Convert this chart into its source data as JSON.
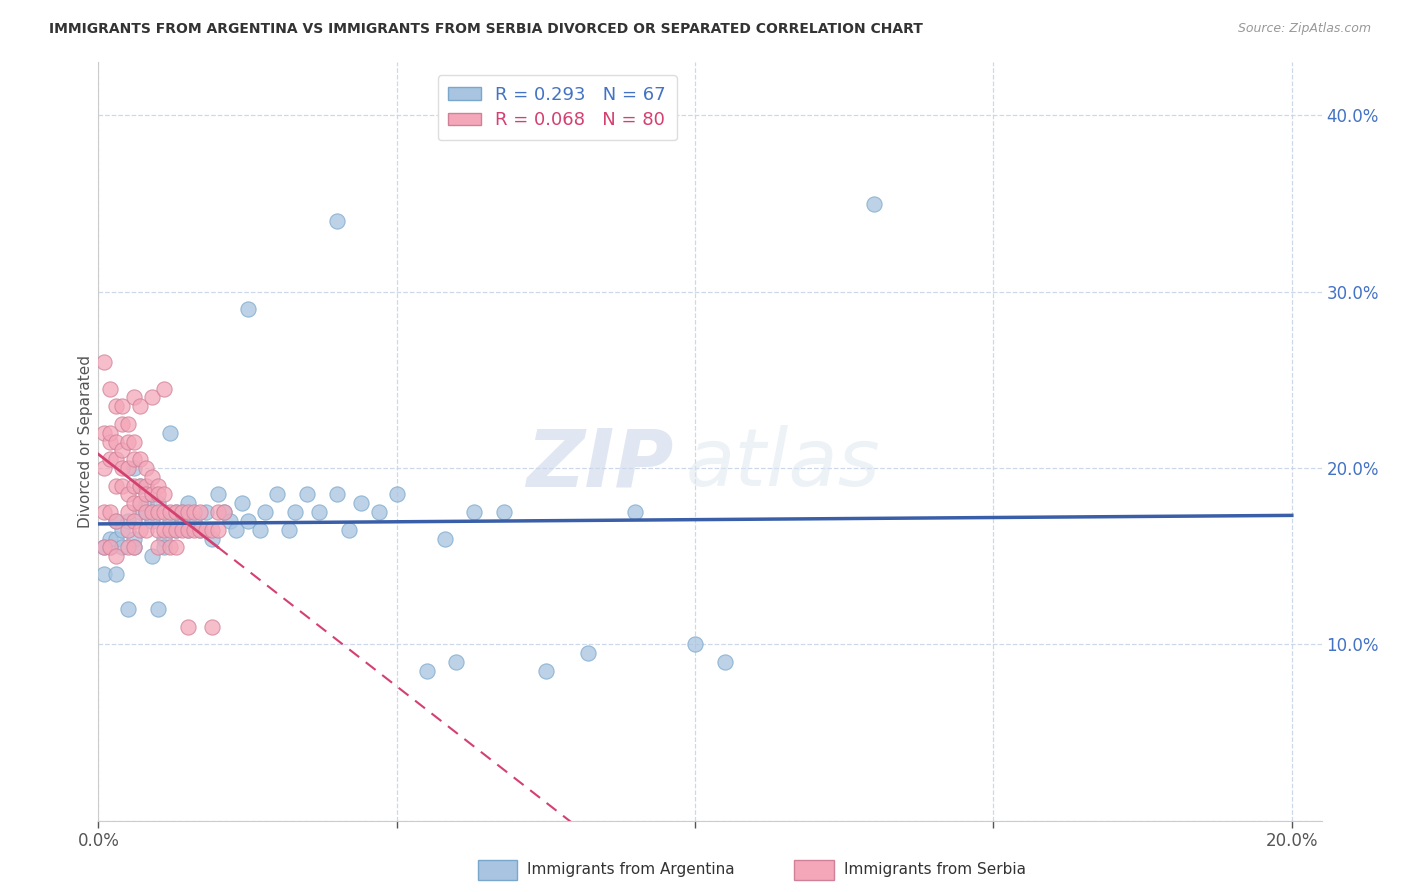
{
  "title": "IMMIGRANTS FROM ARGENTINA VS IMMIGRANTS FROM SERBIA DIVORCED OR SEPARATED CORRELATION CHART",
  "source": "Source: ZipAtlas.com",
  "ylabel": "Divorced or Separated",
  "xlim": [
    0.0,
    0.205
  ],
  "ylim": [
    0.0,
    0.43
  ],
  "xticks": [
    0.0,
    0.05,
    0.1,
    0.15,
    0.2
  ],
  "yticks": [
    0.1,
    0.2,
    0.3,
    0.4
  ],
  "argentina_color": "#a8c4e0",
  "argentina_edge": "#7aa8cc",
  "serbia_color": "#f4a7b9",
  "serbia_edge": "#d08098",
  "argentina_line_color": "#3a5fa8",
  "serbia_line_color": "#d44070",
  "R_argentina": 0.293,
  "N_argentina": 67,
  "R_serbia": 0.068,
  "N_serbia": 80,
  "watermark_zip": "ZIP",
  "watermark_atlas": "atlas",
  "argentina_x": [
    0.001,
    0.001,
    0.002,
    0.002,
    0.003,
    0.003,
    0.003,
    0.004,
    0.004,
    0.005,
    0.005,
    0.006,
    0.006,
    0.006,
    0.007,
    0.007,
    0.008,
    0.008,
    0.009,
    0.009,
    0.01,
    0.01,
    0.011,
    0.011,
    0.012,
    0.012,
    0.013,
    0.013,
    0.014,
    0.014,
    0.015,
    0.015,
    0.016,
    0.017,
    0.018,
    0.019,
    0.02,
    0.021,
    0.022,
    0.023,
    0.024,
    0.025,
    0.027,
    0.028,
    0.03,
    0.032,
    0.033,
    0.035,
    0.037,
    0.04,
    0.042,
    0.044,
    0.047,
    0.05,
    0.055,
    0.058,
    0.06,
    0.063,
    0.068,
    0.075,
    0.082,
    0.09,
    0.1,
    0.105,
    0.13,
    0.025,
    0.04
  ],
  "argentina_y": [
    0.155,
    0.14,
    0.16,
    0.155,
    0.17,
    0.14,
    0.16,
    0.155,
    0.165,
    0.17,
    0.12,
    0.16,
    0.155,
    0.2,
    0.19,
    0.175,
    0.175,
    0.18,
    0.17,
    0.15,
    0.18,
    0.12,
    0.16,
    0.155,
    0.22,
    0.17,
    0.175,
    0.165,
    0.175,
    0.17,
    0.165,
    0.18,
    0.17,
    0.165,
    0.175,
    0.16,
    0.185,
    0.175,
    0.17,
    0.165,
    0.18,
    0.17,
    0.165,
    0.175,
    0.185,
    0.165,
    0.175,
    0.185,
    0.175,
    0.185,
    0.165,
    0.18,
    0.175,
    0.185,
    0.085,
    0.16,
    0.09,
    0.175,
    0.175,
    0.085,
    0.095,
    0.175,
    0.1,
    0.09,
    0.35,
    0.29,
    0.34
  ],
  "serbia_x": [
    0.001,
    0.001,
    0.001,
    0.001,
    0.001,
    0.002,
    0.002,
    0.002,
    0.002,
    0.002,
    0.002,
    0.003,
    0.003,
    0.003,
    0.003,
    0.003,
    0.003,
    0.004,
    0.004,
    0.004,
    0.004,
    0.004,
    0.005,
    0.005,
    0.005,
    0.005,
    0.005,
    0.005,
    0.005,
    0.006,
    0.006,
    0.006,
    0.006,
    0.006,
    0.006,
    0.006,
    0.007,
    0.007,
    0.007,
    0.007,
    0.007,
    0.008,
    0.008,
    0.008,
    0.008,
    0.008,
    0.009,
    0.009,
    0.009,
    0.009,
    0.01,
    0.01,
    0.01,
    0.01,
    0.01,
    0.011,
    0.011,
    0.011,
    0.011,
    0.012,
    0.012,
    0.012,
    0.013,
    0.013,
    0.013,
    0.014,
    0.014,
    0.015,
    0.015,
    0.015,
    0.016,
    0.016,
    0.017,
    0.017,
    0.018,
    0.019,
    0.019,
    0.02,
    0.02,
    0.021
  ],
  "serbia_y": [
    0.26,
    0.22,
    0.2,
    0.155,
    0.175,
    0.215,
    0.205,
    0.22,
    0.245,
    0.175,
    0.155,
    0.215,
    0.205,
    0.19,
    0.235,
    0.17,
    0.15,
    0.225,
    0.21,
    0.2,
    0.19,
    0.235,
    0.225,
    0.215,
    0.2,
    0.185,
    0.175,
    0.165,
    0.155,
    0.215,
    0.205,
    0.19,
    0.18,
    0.17,
    0.24,
    0.155,
    0.205,
    0.19,
    0.18,
    0.235,
    0.165,
    0.2,
    0.19,
    0.185,
    0.175,
    0.165,
    0.195,
    0.185,
    0.175,
    0.24,
    0.19,
    0.185,
    0.175,
    0.165,
    0.155,
    0.185,
    0.175,
    0.165,
    0.245,
    0.175,
    0.165,
    0.155,
    0.175,
    0.165,
    0.155,
    0.175,
    0.165,
    0.175,
    0.165,
    0.11,
    0.175,
    0.165,
    0.175,
    0.165,
    0.165,
    0.165,
    0.11,
    0.165,
    0.175,
    0.175
  ]
}
